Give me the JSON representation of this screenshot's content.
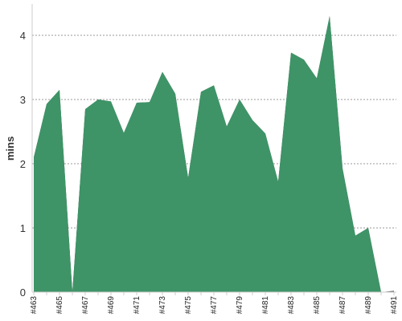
{
  "chart_data": {
    "type": "area",
    "title": "",
    "xlabel": "",
    "ylabel": "mins",
    "ylim": [
      0,
      4.4
    ],
    "yticks": [
      0,
      1,
      2,
      3,
      4
    ],
    "grid": "horizontal-dashed",
    "legend": "none",
    "x": [
      "#463",
      "#464",
      "#465",
      "#466",
      "#467",
      "#468",
      "#469",
      "#470",
      "#471",
      "#472",
      "#473",
      "#474",
      "#475",
      "#476",
      "#477",
      "#478",
      "#479",
      "#480",
      "#481",
      "#482",
      "#483",
      "#484",
      "#485",
      "#486",
      "#487",
      "#488",
      "#489",
      "#490",
      "#491"
    ],
    "x_tick_labels": [
      "#463",
      "#465",
      "#467",
      "#469",
      "#471",
      "#473",
      "#475",
      "#477",
      "#479",
      "#481",
      "#483",
      "#485",
      "#487",
      "#489",
      "#491"
    ],
    "series": [
      {
        "color": "#3e9467",
        "values": [
          2.1,
          2.93,
          3.15,
          0.0,
          2.85,
          3.0,
          2.97,
          2.48,
          2.95,
          2.96,
          3.43,
          3.09,
          1.78,
          3.12,
          3.22,
          2.58,
          3.0,
          2.68,
          2.47,
          1.72,
          3.73,
          3.62,
          3.33,
          4.3,
          1.93,
          0.88,
          1.0,
          0.0,
          0.0
        ]
      },
      {
        "color": "#555555",
        "values": [
          2.1,
          2.93,
          3.15,
          0.0,
          2.85,
          3.0,
          2.97,
          2.48,
          2.95,
          2.96,
          3.43,
          3.09,
          1.78,
          3.12,
          3.22,
          2.58,
          3.0,
          2.68,
          2.47,
          1.72,
          3.73,
          3.62,
          3.33,
          4.3,
          1.93,
          0.88,
          1.0,
          0.0,
          0.02
        ]
      }
    ]
  }
}
